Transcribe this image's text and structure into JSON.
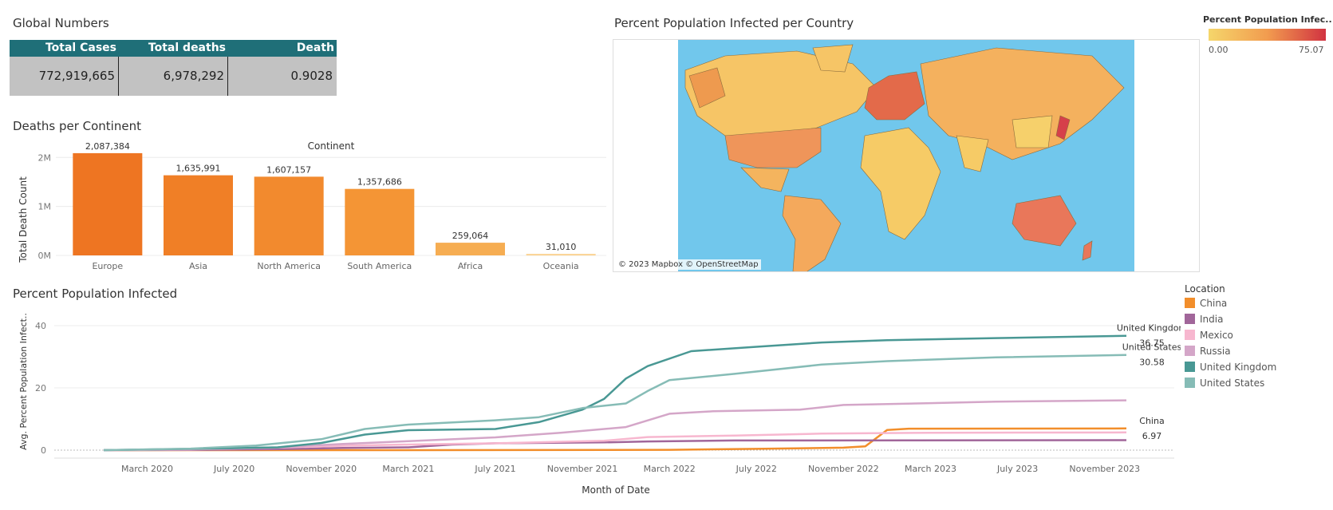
{
  "global_numbers": {
    "title": "Global Numbers",
    "headers": [
      "Total Cases",
      "Total deaths",
      "Death Percentage"
    ],
    "values": [
      "772,919,665",
      "6,978,292",
      "0.9028"
    ],
    "header_color": "#1f6f78",
    "cell_color": "#c2c2c2"
  },
  "map": {
    "title": "Percent Population Infected per Country",
    "attribution": "© 2023 Mapbox © OpenStreetMap",
    "legend_title": "Percent Population Infec..",
    "legend_min": "0.00",
    "legend_max": "75.07",
    "ocean_color": "#71c7ec",
    "gradient_low": "#f5d66b",
    "gradient_high": "#d13341"
  },
  "deaths_chart": {
    "title": "Deaths per Continent",
    "header": "Continent"
  },
  "line_chart": {
    "title": "Percent Population Infected",
    "legend_title": "Location"
  },
  "chart_data": [
    {
      "type": "bar",
      "title": "Deaths per Continent",
      "header": "Continent",
      "ylabel": "Total Death Count",
      "categories": [
        "Europe",
        "Asia",
        "North America",
        "South America",
        "Africa",
        "Oceania"
      ],
      "values": [
        2087384,
        1635991,
        1607157,
        1357686,
        259064,
        31010
      ],
      "value_labels": [
        "2,087,384",
        "1,635,991",
        "1,607,157",
        "1,357,686",
        "259,064",
        "31,010"
      ],
      "colors": [
        "#ee7522",
        "#f07f26",
        "#f28a2e",
        "#f49535",
        "#f6ad52",
        "#fbd393"
      ],
      "yticks": [
        0,
        1000000,
        2000000
      ],
      "ytick_labels": [
        "0M",
        "1M",
        "2M"
      ],
      "ylim": [
        0,
        2200000
      ]
    },
    {
      "type": "line",
      "title": "Percent Population Infected",
      "xlabel": "Month of Date",
      "ylabel": "Avg. Percent Population Infect..",
      "ylim": [
        0,
        40
      ],
      "yticks": [
        0,
        20,
        40
      ],
      "xlim": [
        "2020-01",
        "2023-12"
      ],
      "xtick_labels": [
        "March 2020",
        "July 2020",
        "November 2020",
        "March 2021",
        "July 2021",
        "November 2021",
        "March 2022",
        "July 2022",
        "November 2022",
        "March 2023",
        "July 2023",
        "November 2023"
      ],
      "xtick_months": [
        "2020-03",
        "2020-07",
        "2020-11",
        "2021-03",
        "2021-07",
        "2021-11",
        "2022-03",
        "2022-07",
        "2022-11",
        "2023-03",
        "2023-07",
        "2023-11"
      ],
      "series": [
        {
          "name": "China",
          "color": "#f28e2b",
          "end_label": "6.97",
          "points": [
            [
              "2020-01",
              0
            ],
            [
              "2020-12",
              0
            ],
            [
              "2021-12",
              0.05
            ],
            [
              "2022-03",
              0.1
            ],
            [
              "2022-07",
              0.4
            ],
            [
              "2022-11",
              0.8
            ],
            [
              "2022-12",
              1.2
            ],
            [
              "2023-01",
              6.5
            ],
            [
              "2023-02",
              6.9
            ],
            [
              "2023-12",
              6.97
            ]
          ]
        },
        {
          "name": "India",
          "color": "#a1669a",
          "points": [
            [
              "2020-01",
              0
            ],
            [
              "2020-05",
              0.05
            ],
            [
              "2020-09",
              0.3
            ],
            [
              "2020-12",
              0.7
            ],
            [
              "2021-03",
              0.9
            ],
            [
              "2021-05",
              1.8
            ],
            [
              "2021-07",
              2.2
            ],
            [
              "2021-12",
              2.5
            ],
            [
              "2022-02",
              2.8
            ],
            [
              "2022-06",
              3.1
            ],
            [
              "2023-12",
              3.2
            ]
          ]
        },
        {
          "name": "Mexico",
          "color": "#f7b7cf",
          "points": [
            [
              "2020-01",
              0
            ],
            [
              "2020-05",
              0.2
            ],
            [
              "2020-09",
              0.8
            ],
            [
              "2020-12",
              1.4
            ],
            [
              "2021-03",
              1.8
            ],
            [
              "2021-07",
              2.2
            ],
            [
              "2021-12",
              3.0
            ],
            [
              "2022-02",
              4.2
            ],
            [
              "2022-06",
              4.7
            ],
            [
              "2022-10",
              5.3
            ],
            [
              "2023-03",
              5.6
            ],
            [
              "2023-12",
              5.7
            ]
          ]
        },
        {
          "name": "Russia",
          "color": "#d4a6c8",
          "points": [
            [
              "2020-01",
              0
            ],
            [
              "2020-05",
              0.3
            ],
            [
              "2020-09",
              0.9
            ],
            [
              "2020-12",
              2.0
            ],
            [
              "2021-03",
              2.9
            ],
            [
              "2021-07",
              4.1
            ],
            [
              "2021-10",
              5.6
            ],
            [
              "2021-12",
              6.8
            ],
            [
              "2022-01",
              7.4
            ],
            [
              "2022-03",
              11.7
            ],
            [
              "2022-05",
              12.5
            ],
            [
              "2022-09",
              13.0
            ],
            [
              "2022-11",
              14.5
            ],
            [
              "2023-03",
              15.1
            ],
            [
              "2023-06",
              15.6
            ],
            [
              "2023-12",
              16.0
            ]
          ]
        },
        {
          "name": "United Kingdom",
          "color": "#499894",
          "end_label": "36.75",
          "points": [
            [
              "2020-01",
              0
            ],
            [
              "2020-05",
              0.4
            ],
            [
              "2020-09",
              0.9
            ],
            [
              "2020-11",
              2.3
            ],
            [
              "2021-01",
              5.0
            ],
            [
              "2021-03",
              6.4
            ],
            [
              "2021-07",
              6.8
            ],
            [
              "2021-09",
              9.0
            ],
            [
              "2021-11",
              13.0
            ],
            [
              "2021-12",
              16.5
            ],
            [
              "2022-01",
              23.0
            ],
            [
              "2022-02",
              27.0
            ],
            [
              "2022-04",
              31.8
            ],
            [
              "2022-07",
              33.2
            ],
            [
              "2022-10",
              34.6
            ],
            [
              "2023-01",
              35.3
            ],
            [
              "2023-06",
              36.0
            ],
            [
              "2023-12",
              36.75
            ]
          ]
        },
        {
          "name": "United States",
          "color": "#86bcb6",
          "end_label": "30.58",
          "points": [
            [
              "2020-01",
              0
            ],
            [
              "2020-05",
              0.5
            ],
            [
              "2020-08",
              1.5
            ],
            [
              "2020-11",
              3.5
            ],
            [
              "2021-01",
              6.8
            ],
            [
              "2021-03",
              8.2
            ],
            [
              "2021-07",
              9.6
            ],
            [
              "2021-09",
              10.6
            ],
            [
              "2021-11",
              13.5
            ],
            [
              "2022-01",
              15.0
            ],
            [
              "2022-02",
              19.0
            ],
            [
              "2022-03",
              22.5
            ],
            [
              "2022-06",
              24.5
            ],
            [
              "2022-10",
              27.5
            ],
            [
              "2023-01",
              28.6
            ],
            [
              "2023-06",
              29.8
            ],
            [
              "2023-12",
              30.58
            ]
          ]
        }
      ]
    }
  ]
}
